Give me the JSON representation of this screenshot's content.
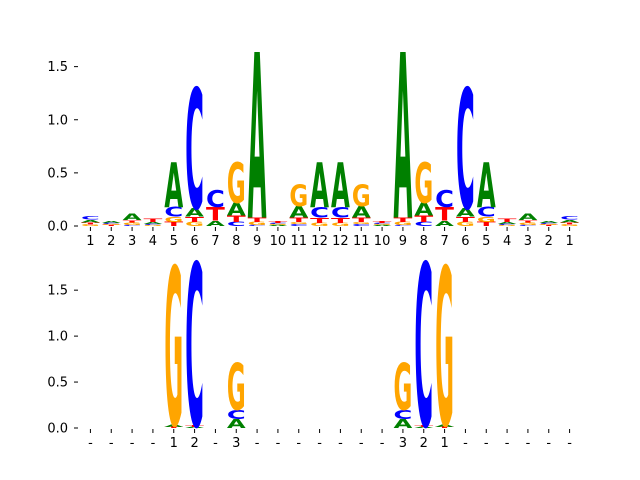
{
  "chart_data": [
    {
      "type": "sequence-logo",
      "ylim": [
        0,
        1.6
      ],
      "yticks": [
        "0.0",
        "0.5",
        "1.0",
        "1.5"
      ],
      "yticks_values": [
        0,
        0.5,
        1.0,
        1.5
      ],
      "xtick_labels": [
        "1",
        "2",
        "3",
        "4",
        "5",
        "6",
        "7",
        "8",
        "9",
        "10",
        "11",
        "12",
        "12",
        "11",
        "10",
        "9",
        "8",
        "7",
        "6",
        "5",
        "4",
        "3",
        "2",
        "1"
      ],
      "columns": [
        [
          {
            "l": "G",
            "h": 0.015
          },
          {
            "l": "T",
            "h": 0.02
          },
          {
            "l": "A",
            "h": 0.025
          },
          {
            "l": "C",
            "h": 0.03
          }
        ],
        [
          {
            "l": "T",
            "h": 0.01
          },
          {
            "l": "G",
            "h": 0.01
          },
          {
            "l": "C",
            "h": 0.01
          },
          {
            "l": "A",
            "h": 0.02
          }
        ],
        [
          {
            "l": "C",
            "h": 0.01
          },
          {
            "l": "G",
            "h": 0.025
          },
          {
            "l": "T",
            "h": 0.02
          },
          {
            "l": "A",
            "h": 0.06
          }
        ],
        [
          {
            "l": "G",
            "h": 0.01
          },
          {
            "l": "C",
            "h": 0.01
          },
          {
            "l": "A",
            "h": 0.02
          },
          {
            "l": "T",
            "h": 0.03
          }
        ],
        [
          {
            "l": "T",
            "h": 0.04
          },
          {
            "l": "G",
            "h": 0.05
          },
          {
            "l": "C",
            "h": 0.09
          },
          {
            "l": "A",
            "h": 0.42
          }
        ],
        [
          {
            "l": "G",
            "h": 0.04
          },
          {
            "l": "T",
            "h": 0.05
          },
          {
            "l": "A",
            "h": 0.08
          },
          {
            "l": "C",
            "h": 1.13
          }
        ],
        [
          {
            "l": "A",
            "h": 0.05
          },
          {
            "l": "T",
            "h": 0.13
          },
          {
            "l": "C",
            "h": 0.16
          }
        ],
        [
          {
            "l": "C",
            "h": 0.04
          },
          {
            "l": "T",
            "h": 0.06
          },
          {
            "l": "A",
            "h": 0.12
          },
          {
            "l": "G",
            "h": 0.38
          }
        ],
        [
          {
            "l": "C",
            "h": 0.01
          },
          {
            "l": "G",
            "h": 0.03
          },
          {
            "l": "T",
            "h": 0.04
          },
          {
            "l": "A",
            "h": 1.56
          }
        ],
        [
          {
            "l": "A",
            "h": 0.01
          },
          {
            "l": "G",
            "h": 0.01
          },
          {
            "l": "C",
            "h": 0.01
          },
          {
            "l": "T",
            "h": 0.02
          }
        ],
        [
          {
            "l": "C",
            "h": 0.02
          },
          {
            "l": "G",
            "h": 0.02
          },
          {
            "l": "T",
            "h": 0.04
          },
          {
            "l": "A",
            "h": 0.11
          },
          {
            "l": "G",
            "h": 0.2
          }
        ],
        [
          {
            "l": "G",
            "h": 0.03
          },
          {
            "l": "T",
            "h": 0.05
          },
          {
            "l": "C",
            "h": 0.1
          },
          {
            "l": "A",
            "h": 0.42
          }
        ],
        [
          {
            "l": "G",
            "h": 0.03
          },
          {
            "l": "T",
            "h": 0.05
          },
          {
            "l": "C",
            "h": 0.1
          },
          {
            "l": "A",
            "h": 0.42
          }
        ],
        [
          {
            "l": "C",
            "h": 0.02
          },
          {
            "l": "G",
            "h": 0.02
          },
          {
            "l": "T",
            "h": 0.04
          },
          {
            "l": "A",
            "h": 0.11
          },
          {
            "l": "G",
            "h": 0.2
          }
        ],
        [
          {
            "l": "A",
            "h": 0.01
          },
          {
            "l": "G",
            "h": 0.01
          },
          {
            "l": "C",
            "h": 0.01
          },
          {
            "l": "T",
            "h": 0.02
          }
        ],
        [
          {
            "l": "C",
            "h": 0.01
          },
          {
            "l": "G",
            "h": 0.03
          },
          {
            "l": "T",
            "h": 0.04
          },
          {
            "l": "A",
            "h": 1.56
          }
        ],
        [
          {
            "l": "C",
            "h": 0.04
          },
          {
            "l": "T",
            "h": 0.06
          },
          {
            "l": "A",
            "h": 0.12
          },
          {
            "l": "G",
            "h": 0.38
          }
        ],
        [
          {
            "l": "A",
            "h": 0.05
          },
          {
            "l": "T",
            "h": 0.13
          },
          {
            "l": "C",
            "h": 0.16
          }
        ],
        [
          {
            "l": "G",
            "h": 0.04
          },
          {
            "l": "T",
            "h": 0.05
          },
          {
            "l": "A",
            "h": 0.08
          },
          {
            "l": "C",
            "h": 1.13
          }
        ],
        [
          {
            "l": "T",
            "h": 0.04
          },
          {
            "l": "G",
            "h": 0.05
          },
          {
            "l": "C",
            "h": 0.09
          },
          {
            "l": "A",
            "h": 0.42
          }
        ],
        [
          {
            "l": "G",
            "h": 0.01
          },
          {
            "l": "C",
            "h": 0.01
          },
          {
            "l": "A",
            "h": 0.02
          },
          {
            "l": "T",
            "h": 0.03
          }
        ],
        [
          {
            "l": "C",
            "h": 0.01
          },
          {
            "l": "G",
            "h": 0.025
          },
          {
            "l": "T",
            "h": 0.02
          },
          {
            "l": "A",
            "h": 0.06
          }
        ],
        [
          {
            "l": "T",
            "h": 0.01
          },
          {
            "l": "G",
            "h": 0.01
          },
          {
            "l": "C",
            "h": 0.01
          },
          {
            "l": "A",
            "h": 0.02
          }
        ],
        [
          {
            "l": "G",
            "h": 0.015
          },
          {
            "l": "T",
            "h": 0.02
          },
          {
            "l": "A",
            "h": 0.025
          },
          {
            "l": "C",
            "h": 0.03
          }
        ]
      ]
    },
    {
      "type": "sequence-logo",
      "ylim": [
        0,
        1.85
      ],
      "yticks": [
        "0.0",
        "0.5",
        "1.0",
        "1.5"
      ],
      "yticks_values": [
        0,
        0.5,
        1.0,
        1.5
      ],
      "xtick_labels": [
        "-",
        "-",
        "-",
        "-",
        "1",
        "2",
        "-",
        "3",
        "-",
        "-",
        "-",
        "-",
        "-",
        "-",
        "-",
        "3",
        "2",
        "1",
        "-",
        "-",
        "-",
        "-",
        "-",
        "-"
      ],
      "columns": [
        [],
        [],
        [],
        [],
        [
          {
            "l": "T",
            "h": 0.01
          },
          {
            "l": "A",
            "h": 0.03
          },
          {
            "l": "G",
            "h": 1.72
          }
        ],
        [
          {
            "l": "A",
            "h": 0.01
          },
          {
            "l": "T",
            "h": 0.02
          },
          {
            "l": "C",
            "h": 1.77
          }
        ],
        [],
        [
          {
            "l": "A",
            "h": 0.1
          },
          {
            "l": "C",
            "h": 0.1
          },
          {
            "l": "G",
            "h": 0.51
          }
        ],
        [],
        [],
        [],
        [],
        [],
        [],
        [],
        [
          {
            "l": "A",
            "h": 0.1
          },
          {
            "l": "C",
            "h": 0.1
          },
          {
            "l": "G",
            "h": 0.51
          }
        ],
        [
          {
            "l": "A",
            "h": 0.01
          },
          {
            "l": "T",
            "h": 0.02
          },
          {
            "l": "C",
            "h": 1.77
          }
        ],
        [
          {
            "l": "T",
            "h": 0.01
          },
          {
            "l": "A",
            "h": 0.03
          },
          {
            "l": "G",
            "h": 1.72
          }
        ],
        [],
        [],
        [],
        [],
        [],
        []
      ]
    }
  ],
  "colors": {
    "A": "#008000",
    "C": "#0000ff",
    "G": "#ffa500",
    "T": "#ff0000"
  }
}
